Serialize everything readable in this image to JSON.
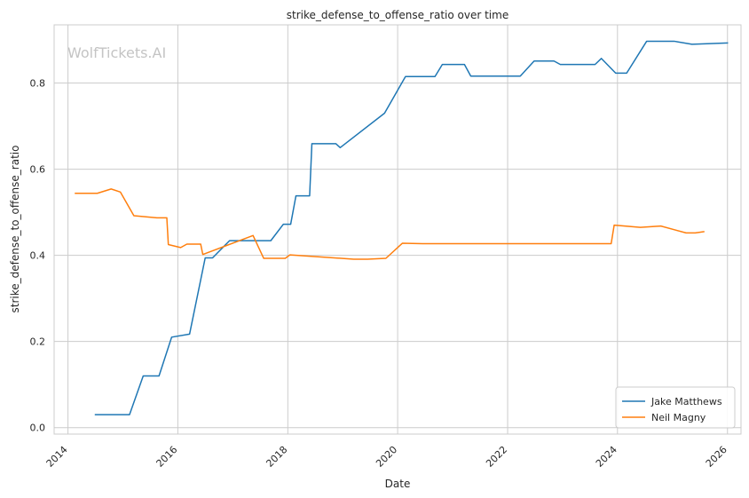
{
  "watermark": "WolfTickets.AI",
  "chart_data": {
    "type": "line",
    "title": "strike_defense_to_offense_ratio over time",
    "xlabel": "Date",
    "ylabel": "strike_defense_to_offense_ratio",
    "xlim": [
      "2013-10-01",
      "2026-04-01"
    ],
    "ylim": [
      -0.015,
      0.935
    ],
    "x_ticks": [
      "2014",
      "2016",
      "2018",
      "2020",
      "2022",
      "2024",
      "2026"
    ],
    "y_ticks": [
      "0.0",
      "0.2",
      "0.4",
      "0.6",
      "0.8"
    ],
    "y_tick_values": [
      0.0,
      0.2,
      0.4,
      0.6,
      0.8
    ],
    "grid": true,
    "legend_position": "bottom-right",
    "series": [
      {
        "name": "Jake Matthews",
        "color": "#1f77b4",
        "points": [
          [
            "2014-06-28",
            0.03
          ],
          [
            "2015-02-14",
            0.03
          ],
          [
            "2015-05-16",
            0.12
          ],
          [
            "2015-08-29",
            0.12
          ],
          [
            "2015-11-21",
            0.21
          ],
          [
            "2016-03-19",
            0.217
          ],
          [
            "2016-07-01",
            0.394
          ],
          [
            "2016-08-19",
            0.394
          ],
          [
            "2016-12-10",
            0.434
          ],
          [
            "2017-09-10",
            0.434
          ],
          [
            "2017-12-02",
            0.472
          ],
          [
            "2018-01-20",
            0.472
          ],
          [
            "2018-02-24",
            0.538
          ],
          [
            "2018-05-26",
            0.538
          ],
          [
            "2018-06-10",
            0.659
          ],
          [
            "2018-11-17",
            0.659
          ],
          [
            "2018-12-15",
            0.65
          ],
          [
            "2019-10-06",
            0.73
          ],
          [
            "2020-02-22",
            0.815
          ],
          [
            "2020-09-05",
            0.815
          ],
          [
            "2020-10-24",
            0.843
          ],
          [
            "2021-03-20",
            0.843
          ],
          [
            "2021-05-01",
            0.816
          ],
          [
            "2022-03-26",
            0.816
          ],
          [
            "2022-06-26",
            0.851
          ],
          [
            "2022-11-05",
            0.851
          ],
          [
            "2022-12-17",
            0.843
          ],
          [
            "2023-08-05",
            0.843
          ],
          [
            "2023-09-16",
            0.857
          ],
          [
            "2023-12-20",
            0.823
          ],
          [
            "2024-03-02",
            0.823
          ],
          [
            "2024-07-13",
            0.897
          ],
          [
            "2025-01-11",
            0.897
          ],
          [
            "2025-05-10",
            0.89
          ],
          [
            "2026-01-05",
            0.893
          ]
        ]
      },
      {
        "name": "Neil Magny",
        "color": "#ff7f0e",
        "points": [
          [
            "2014-02-15",
            0.544
          ],
          [
            "2014-07-15",
            0.544
          ],
          [
            "2014-10-15",
            0.554
          ],
          [
            "2014-12-15",
            0.547
          ],
          [
            "2015-03-15",
            0.492
          ],
          [
            "2015-08-15",
            0.487
          ],
          [
            "2015-10-20",
            0.487
          ],
          [
            "2015-10-30",
            0.425
          ],
          [
            "2016-01-20",
            0.418
          ],
          [
            "2016-03-01",
            0.426
          ],
          [
            "2016-06-01",
            0.426
          ],
          [
            "2016-06-15",
            0.402
          ],
          [
            "2017-05-15",
            0.446
          ],
          [
            "2017-07-25",
            0.393
          ],
          [
            "2017-12-15",
            0.393
          ],
          [
            "2018-01-15",
            0.401
          ],
          [
            "2019-03-15",
            0.391
          ],
          [
            "2019-06-15",
            0.391
          ],
          [
            "2019-10-15",
            0.393
          ],
          [
            "2020-02-01",
            0.428
          ],
          [
            "2020-06-15",
            0.427
          ],
          [
            "2020-09-01",
            0.427
          ],
          [
            "2020-12-01",
            0.427
          ],
          [
            "2021-03-01",
            0.427
          ],
          [
            "2021-06-01",
            0.427
          ],
          [
            "2021-12-01",
            0.427
          ],
          [
            "2022-06-01",
            0.427
          ],
          [
            "2022-09-01",
            0.427
          ],
          [
            "2022-12-01",
            0.427
          ],
          [
            "2023-03-01",
            0.427
          ],
          [
            "2023-06-01",
            0.427
          ],
          [
            "2023-09-01",
            0.427
          ],
          [
            "2023-11-20",
            0.427
          ],
          [
            "2023-12-10",
            0.47
          ],
          [
            "2024-06-01",
            0.465
          ],
          [
            "2024-10-15",
            0.468
          ],
          [
            "2025-04-01",
            0.452
          ],
          [
            "2025-06-01",
            0.452
          ],
          [
            "2025-08-01",
            0.455
          ]
        ]
      }
    ]
  }
}
